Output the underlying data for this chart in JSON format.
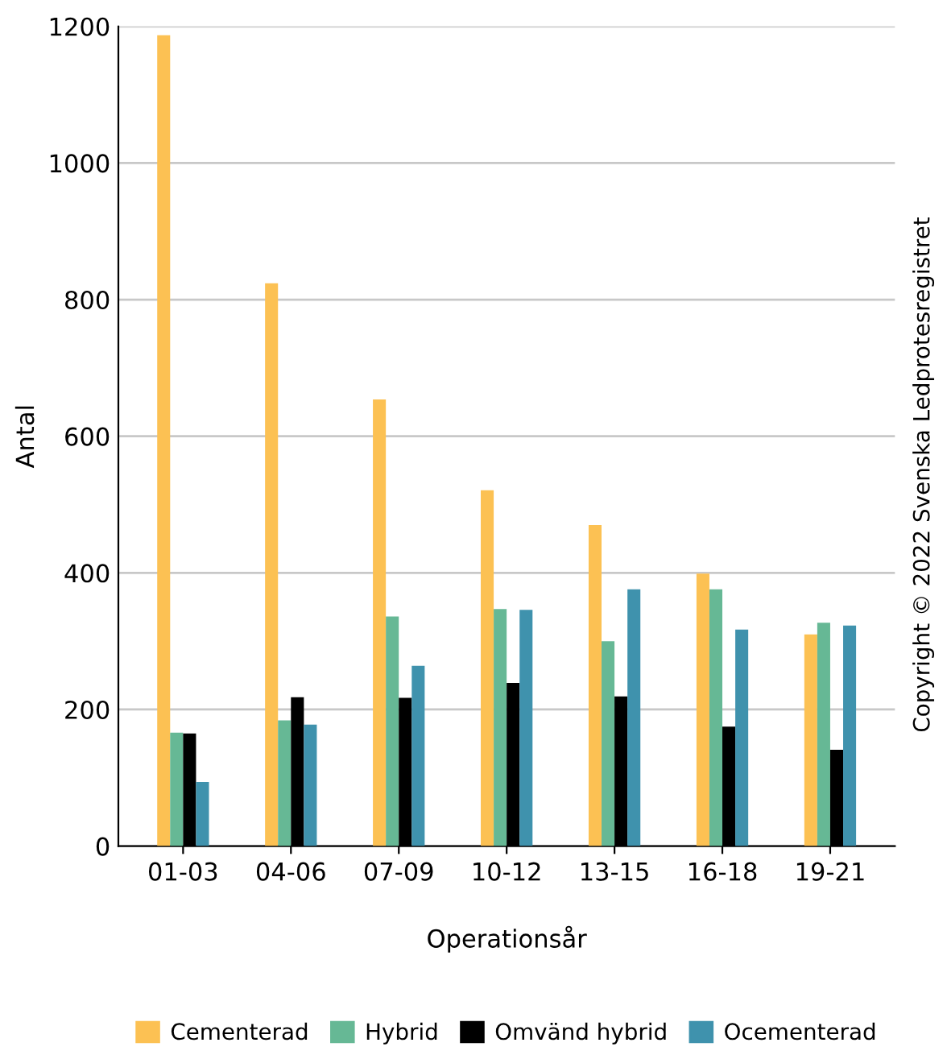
{
  "chart_data": {
    "type": "bar",
    "xlabel": "Operationsår",
    "ylabel": "Antal",
    "categories": [
      "01-03",
      "04-06",
      "07-09",
      "10-12",
      "13-15",
      "16-18",
      "19-21"
    ],
    "series": [
      {
        "name": "Cementerad",
        "color": "#fcc153",
        "values": [
          1187,
          824,
          654,
          521,
          470,
          399,
          310
        ]
      },
      {
        "name": "Hybrid",
        "color": "#66b895",
        "values": [
          166,
          184,
          336,
          347,
          300,
          376,
          327
        ]
      },
      {
        "name": "Omvänd hybrid",
        "color": "#000000",
        "values": [
          165,
          218,
          217,
          239,
          219,
          175,
          141
        ]
      },
      {
        "name": "Ocementerad",
        "color": "#3f92ad",
        "values": [
          94,
          178,
          264,
          346,
          376,
          317,
          323
        ]
      }
    ],
    "ylim": [
      0,
      1200
    ],
    "yticks": [
      0,
      200,
      400,
      600,
      800,
      1000,
      1200
    ],
    "grid": "y",
    "legend": "bottom",
    "annotations": [
      "Copyright © 2022 Svenska Ledprotesregistret"
    ]
  }
}
